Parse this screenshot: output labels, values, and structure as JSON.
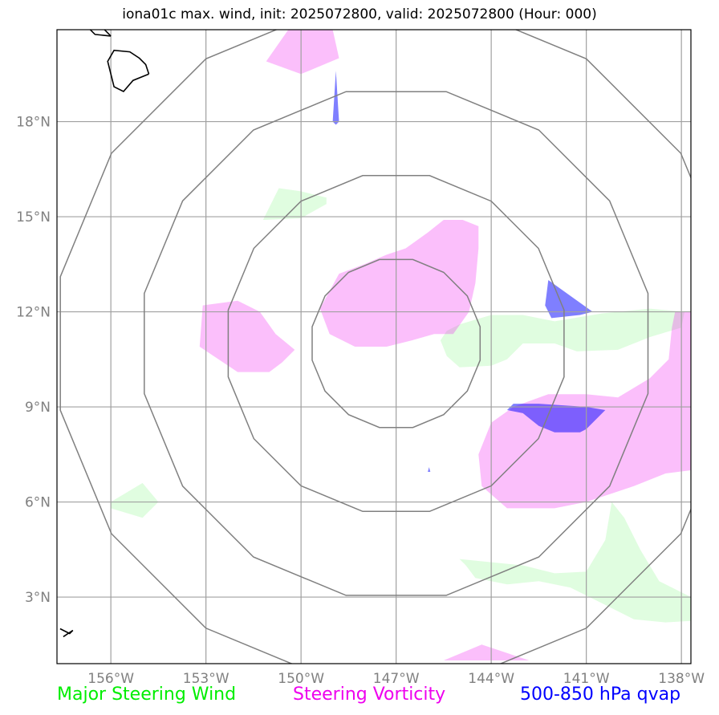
{
  "title": "iona01c max. wind, init: 2025072800, valid: 2025072800 (Hour: 000)",
  "colors": {
    "steering_wind": "#00ee00",
    "steering_vorticity": "#ee00ee",
    "qvap": "#0000ff",
    "ticks": "#808080",
    "rings": "#808080",
    "grid": "#a0a0a0"
  },
  "legend": {
    "steering_wind": "Major Steering Wind",
    "steering_vorticity": "Steering Vorticity",
    "qvap": "500-850 hPa qvap"
  },
  "map": {
    "lon_range": [
      -157.7,
      -137.7
    ],
    "lat_range": [
      0.9,
      20.9
    ],
    "grid": true,
    "center": {
      "lon": -147,
      "lat": 11
    },
    "range_rings_deg": [
      2.7,
      5.4,
      8.1,
      10.8
    ],
    "lon_ticks": [
      {
        "value": -156,
        "label": "156°W"
      },
      {
        "value": -153,
        "label": "153°W"
      },
      {
        "value": -150,
        "label": "150°W"
      },
      {
        "value": -147,
        "label": "147°W"
      },
      {
        "value": -144,
        "label": "144°W"
      },
      {
        "value": -141,
        "label": "141°W"
      },
      {
        "value": -138,
        "label": "138°W"
      }
    ],
    "lat_ticks": [
      {
        "value": 18,
        "label": "18°N"
      },
      {
        "value": 15,
        "label": "15°N"
      },
      {
        "value": 12,
        "label": "12°N"
      },
      {
        "value": 9,
        "label": "9°N"
      },
      {
        "value": 6,
        "label": "6°N"
      },
      {
        "value": 3,
        "label": "3°N"
      }
    ],
    "coastlines": [
      [
        [
          -154.8,
          19.5
        ],
        [
          -154.9,
          19.8
        ],
        [
          -155.1,
          20.0
        ],
        [
          -155.4,
          20.2
        ],
        [
          -155.9,
          20.25
        ],
        [
          -156.1,
          19.9
        ],
        [
          -155.9,
          19.1
        ],
        [
          -155.6,
          18.95
        ],
        [
          -155.3,
          19.3
        ],
        [
          -154.8,
          19.5
        ]
      ],
      [
        [
          -156.0,
          20.7
        ],
        [
          -156.25,
          20.95
        ],
        [
          -156.7,
          20.95
        ],
        [
          -156.5,
          20.75
        ],
        [
          -156.0,
          20.7
        ]
      ],
      [
        [
          -157.6,
          2.0
        ],
        [
          -157.3,
          1.85
        ],
        [
          -157.2,
          1.95
        ],
        [
          -157.5,
          1.75
        ]
      ]
    ],
    "steering_wind_areas": [
      [
        [
          -149.2,
          15.6
        ],
        [
          -150.0,
          15.8
        ],
        [
          -150.7,
          15.9
        ],
        [
          -151.2,
          14.9
        ],
        [
          -150.0,
          14.95
        ],
        [
          -149.2,
          15.4
        ]
      ],
      [
        [
          -145.0,
          11.6
        ],
        [
          -144.0,
          11.9
        ],
        [
          -143.0,
          11.9
        ],
        [
          -142.0,
          11.7
        ],
        [
          -140.5,
          11.95
        ],
        [
          -139.0,
          12.1
        ],
        [
          -137.9,
          12.0
        ],
        [
          -138.0,
          11.5
        ],
        [
          -139.0,
          11.2
        ],
        [
          -140.0,
          10.8
        ],
        [
          -141.3,
          10.75
        ],
        [
          -142.0,
          11.0
        ],
        [
          -143.0,
          11.0
        ],
        [
          -143.5,
          10.5
        ],
        [
          -144.0,
          10.3
        ],
        [
          -145.0,
          10.25
        ],
        [
          -145.4,
          10.6
        ],
        [
          -145.6,
          11.1
        ],
        [
          -145.4,
          11.4
        ]
      ],
      [
        [
          -156.0,
          6.0
        ],
        [
          -155.0,
          6.6
        ],
        [
          -154.5,
          6.0
        ],
        [
          -155.0,
          5.5
        ],
        [
          -156.0,
          5.8
        ]
      ],
      [
        [
          -145.0,
          4.2
        ],
        [
          -144.0,
          4.1
        ],
        [
          -143.0,
          4.0
        ],
        [
          -142.0,
          3.75
        ],
        [
          -141.0,
          3.8
        ],
        [
          -140.4,
          4.8
        ],
        [
          -140.2,
          6.0
        ],
        [
          -139.8,
          5.5
        ],
        [
          -139.3,
          4.5
        ],
        [
          -138.7,
          3.5
        ],
        [
          -137.7,
          3.0
        ],
        [
          -137.7,
          2.25
        ],
        [
          -138.5,
          2.2
        ],
        [
          -139.5,
          2.3
        ],
        [
          -140.5,
          2.8
        ],
        [
          -141.5,
          3.3
        ],
        [
          -142.5,
          3.5
        ],
        [
          -143.5,
          3.4
        ],
        [
          -144.5,
          3.6
        ],
        [
          -144.8,
          4.0
        ]
      ]
    ],
    "steering_vorticity_areas": [
      [
        [
          -150.4,
          20.9
        ],
        [
          -149.0,
          20.9
        ],
        [
          -148.8,
          20.0
        ],
        [
          -150.0,
          19.5
        ],
        [
          -151.1,
          19.9
        ]
      ],
      [
        [
          -145.2,
          11.3
        ],
        [
          -144.7,
          12.0
        ],
        [
          -144.5,
          12.9
        ],
        [
          -144.4,
          14.0
        ],
        [
          -144.4,
          14.7
        ],
        [
          -144.9,
          14.9
        ],
        [
          -145.5,
          14.9
        ],
        [
          -146.0,
          14.5
        ],
        [
          -146.7,
          14.0
        ],
        [
          -147.3,
          13.8
        ],
        [
          -148.0,
          13.5
        ],
        [
          -148.8,
          13.2
        ],
        [
          -149.4,
          12.1
        ],
        [
          -149.1,
          11.3
        ],
        [
          -148.3,
          10.9
        ],
        [
          -147.3,
          10.9
        ],
        [
          -146.5,
          11.1
        ],
        [
          -145.8,
          11.3
        ]
      ],
      [
        [
          -153.1,
          12.2
        ],
        [
          -152.0,
          12.35
        ],
        [
          -151.3,
          12.0
        ],
        [
          -150.8,
          11.3
        ],
        [
          -150.2,
          10.8
        ],
        [
          -150.6,
          10.4
        ],
        [
          -151.0,
          10.1
        ],
        [
          -152.0,
          10.1
        ],
        [
          -153.2,
          10.9
        ]
      ],
      [
        [
          -140.0,
          9.3
        ],
        [
          -139.0,
          9.9
        ],
        [
          -138.4,
          10.5
        ],
        [
          -138.3,
          11.5
        ],
        [
          -138.2,
          12.0
        ],
        [
          -137.7,
          12.0
        ],
        [
          -137.7,
          7.0
        ],
        [
          -138.5,
          6.9
        ],
        [
          -139.5,
          6.5
        ],
        [
          -141.0,
          6.0
        ],
        [
          -142.0,
          5.8
        ],
        [
          -143.5,
          5.8
        ],
        [
          -144.3,
          6.5
        ],
        [
          -144.4,
          7.5
        ],
        [
          -144.0,
          8.5
        ],
        [
          -143.3,
          9.0
        ],
        [
          -142.2,
          9.4
        ],
        [
          -141.0,
          9.4
        ]
      ],
      [
        [
          -144.3,
          1.5
        ],
        [
          -142.8,
          1.0
        ],
        [
          -145.5,
          1.0
        ]
      ]
    ],
    "qvap_areas": [
      [
        [
          -142.2,
          13.0
        ],
        [
          -142.3,
          12.2
        ],
        [
          -142.1,
          11.8
        ],
        [
          -141.2,
          11.9
        ],
        [
          -140.8,
          12.0
        ]
      ],
      [
        [
          -143.3,
          9.1
        ],
        [
          -142.5,
          9.1
        ],
        [
          -141.0,
          9.0
        ],
        [
          -140.4,
          8.9
        ],
        [
          -141.0,
          8.3
        ],
        [
          -141.2,
          8.2
        ],
        [
          -142.0,
          8.2
        ],
        [
          -142.5,
          8.4
        ],
        [
          -143.0,
          8.8
        ],
        [
          -143.5,
          8.9
        ]
      ],
      [
        [
          -148.9,
          19.6
        ],
        [
          -148.8,
          18.0
        ],
        [
          -148.9,
          17.9
        ],
        [
          -149.0,
          18.0
        ]
      ],
      [
        [
          -145.96,
          7.1
        ],
        [
          -145.92,
          6.95
        ],
        [
          -146.0,
          6.95
        ]
      ]
    ]
  }
}
